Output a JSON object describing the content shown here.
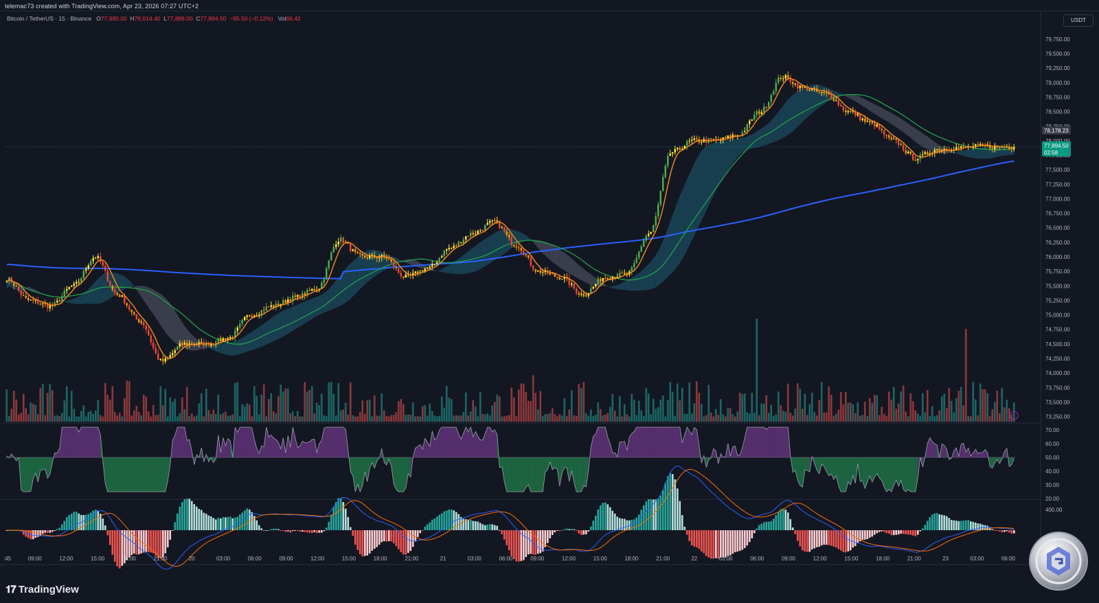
{
  "header": {
    "credit": "telemac73 created with TradingView.com, Apr 23, 2026 07:27 UTC+2"
  },
  "legend": {
    "symbol": "Bitcoin / TetherUS · 15 · Binance",
    "open_label": "O",
    "open": "77,990.00",
    "high_label": "H",
    "high": "78,014.40",
    "low_label": "L",
    "low": "77,888.00",
    "close_label": "C",
    "close": "77,894.50",
    "change": "−95.50 (−0.12%)",
    "vol_label": "Vol",
    "vol": "66.42"
  },
  "price_axis": {
    "currency": "USDT",
    "labels": [
      "79,750.00",
      "79,500.00",
      "79,250.00",
      "79,000.00",
      "78,750.00",
      "78,500.00",
      "78,250.00",
      "78,000.00",
      "77,750.00",
      "77,500.00",
      "77,250.00",
      "77,000.00",
      "76,750.00",
      "76,500.00",
      "76,250.00",
      "76,000.00",
      "75,750.00",
      "75,500.00",
      "75,250.00",
      "75,000.00",
      "74,750.00",
      "74,500.00",
      "74,250.00",
      "74,000.00",
      "73,750.00",
      "73,500.00",
      "73,250.00"
    ],
    "ma_badge": "78,178.23",
    "price_badge": "77,894.50",
    "countdown": "02:58"
  },
  "rsi_axis": {
    "labels": [
      "70.00",
      "60.00",
      "50.00",
      "40.00",
      "30.00",
      "20.00"
    ]
  },
  "macd_axis": {
    "labels": [
      "400.00"
    ]
  },
  "time_axis": {
    "labels": [
      ":45",
      "09:00",
      "12:00",
      "15:00",
      "18:00",
      "21:00",
      "20",
      "03:00",
      "06:00",
      "09:00",
      "12:00",
      "15:00",
      "18:00",
      "21:00",
      "21",
      "03:00",
      "06:00",
      "09:00",
      "12:00",
      "15:00",
      "18:00",
      "21:00",
      "22",
      "03:00",
      "06:00",
      "09:00",
      "12:00",
      "15:00",
      "18:00",
      "21:00",
      "23",
      "03:00",
      "06:00"
    ]
  },
  "colors": {
    "background": "#131722",
    "bull": "#26a69a",
    "bear": "#ef5350",
    "candle_green": "#4caf50",
    "candle_orange": "#ff9800",
    "candle_red": "#f44336",
    "candle_yellow": "#ffeb3b",
    "ma_fast": "#ff8c1a",
    "ma_mid": "#22a04b",
    "ma_slow": "#2962ff",
    "cloud_bull": "#1b4d60",
    "cloud_bear": "#4a4d5c",
    "rsi_up": "#8e44ad",
    "rsi_down": "#26a65b",
    "badge_green": "#089981"
  },
  "branding": {
    "name": "TradingView",
    "logo_icon": "tradingview-logo-icon",
    "coin_icon": "crypto-coin-logo-icon"
  },
  "chart_data": {
    "type": "candlestick",
    "symbol": "BTCUSDT",
    "interval": "15",
    "ylim": [
      73150,
      79950
    ],
    "rsi_ylim": [
      20,
      70
    ],
    "last_price": 77894.5,
    "waypoints": {
      "x_fraction": [
        0.0,
        0.022,
        0.044,
        0.066,
        0.088,
        0.11,
        0.132,
        0.154,
        0.176,
        0.198,
        0.22,
        0.242,
        0.264,
        0.286,
        0.308,
        0.33,
        0.352,
        0.374,
        0.396,
        0.418,
        0.44,
        0.462,
        0.484,
        0.506,
        0.528,
        0.55,
        0.572,
        0.594,
        0.616,
        0.638,
        0.66,
        0.682,
        0.704,
        0.726,
        0.748,
        0.77,
        0.792,
        0.814,
        0.836,
        0.858,
        0.88,
        0.902,
        0.924,
        0.946,
        0.968,
        0.99
      ],
      "price": [
        75620,
        75250,
        75150,
        75500,
        76000,
        75350,
        74900,
        74200,
        74500,
        74500,
        74600,
        75000,
        75150,
        75300,
        75450,
        76300,
        76000,
        76000,
        75650,
        75800,
        76150,
        76400,
        76600,
        76200,
        75750,
        75650,
        75350,
        75650,
        75700,
        76400,
        77800,
        78000,
        78000,
        78100,
        78500,
        79100,
        78900,
        78800,
        78500,
        78300,
        78000,
        77700,
        77850,
        77880,
        77900,
        77894.5
      ]
    },
    "ma_slow_start": 75900,
    "ma_slow_end": 77300,
    "volume_spikes": [
      {
        "at": 0.745,
        "level": 1.0,
        "color": "bull"
      },
      {
        "at": 0.952,
        "level": 0.9,
        "color": "bull"
      },
      {
        "at": 0.523,
        "level": 0.45,
        "color": "bull"
      }
    ]
  }
}
